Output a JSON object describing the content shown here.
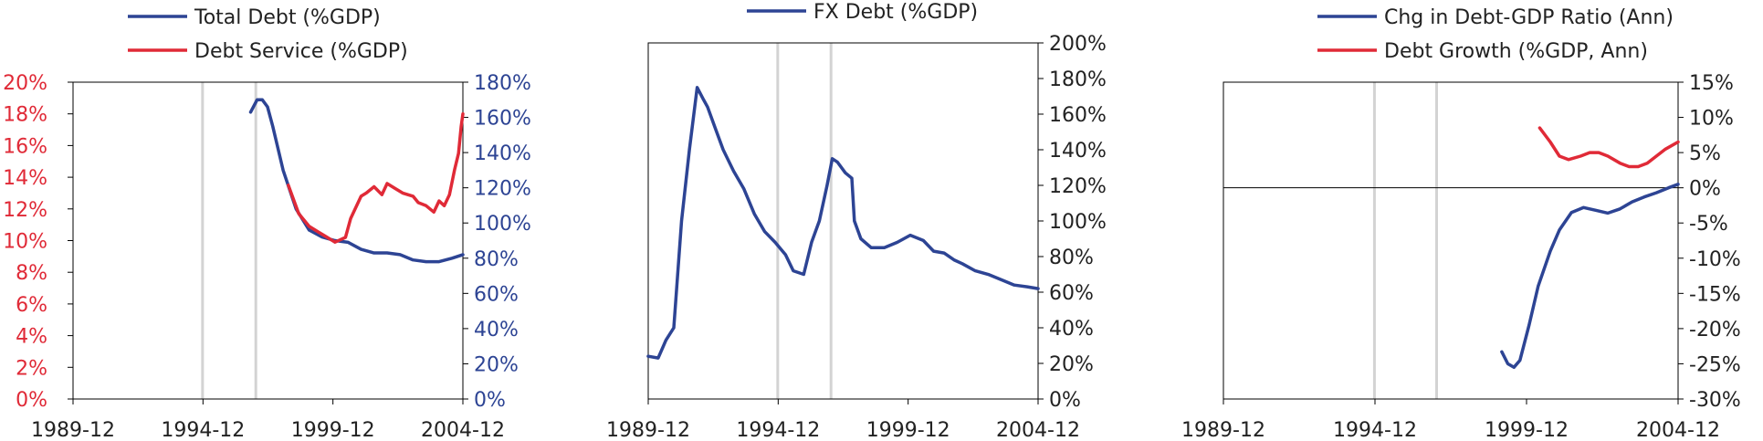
{
  "colors": {
    "blue": "#2d4494",
    "red": "#e02a37",
    "axis": "#000000",
    "recession": "#d3d3d3",
    "left_axis_red": "#e02a37",
    "right_axis_blue": "#2d4494"
  },
  "chart_data": [
    {
      "type": "line",
      "legend": [
        "Total Debt (%GDP)",
        "Debt Service (%GDP)"
      ],
      "x_tick_labels": [
        "1989-12",
        "1994-12",
        "1999-12",
        "2004-12"
      ],
      "xlim": [
        1989.917,
        2004.917
      ],
      "left_axis": {
        "ylim": [
          0,
          20
        ],
        "tick_labels": [
          "0%",
          "2%",
          "4%",
          "6%",
          "8%",
          "10%",
          "12%",
          "14%",
          "16%",
          "18%",
          "20%"
        ]
      },
      "right_axis": {
        "ylim": [
          0,
          180
        ],
        "tick_labels": [
          "0%",
          "20%",
          "40%",
          "60%",
          "80%",
          "100%",
          "120%",
          "140%",
          "160%",
          "180%"
        ]
      },
      "recession_lines": [
        1994.9,
        1996.95
      ],
      "series": [
        {
          "name": "Total Debt (%GDP)",
          "axis": "right",
          "color": "blue",
          "x": [
            1996.75,
            1997.0,
            1997.2,
            1997.4,
            1997.6,
            1998.0,
            1998.5,
            1999.0,
            1999.5,
            2000.0,
            2000.5,
            2001.0,
            2001.5,
            2002.0,
            2002.5,
            2003.0,
            2003.5,
            2004.0,
            2004.5,
            2004.917
          ],
          "y": [
            163,
            170,
            170,
            166,
            155,
            130,
            108,
            96,
            92,
            90,
            89,
            85,
            83,
            83,
            82,
            79,
            78,
            78,
            80,
            82
          ]
        },
        {
          "name": "Debt Service (%GDP)",
          "axis": "left",
          "color": "red",
          "x": [
            1998.2,
            1998.6,
            1999.0,
            1999.3,
            1999.6,
            2000.0,
            2000.4,
            2000.6,
            2001.0,
            2001.2,
            2001.5,
            2001.8,
            2002.0,
            2002.3,
            2002.6,
            2003.0,
            2003.2,
            2003.5,
            2003.8,
            2004.0,
            2004.2,
            2004.4,
            2004.6,
            2004.75,
            2004.85,
            2004.917
          ],
          "y": [
            13.5,
            11.7,
            10.9,
            10.6,
            10.3,
            9.9,
            10.2,
            11.4,
            12.8,
            13.0,
            13.4,
            12.9,
            13.6,
            13.3,
            13.0,
            12.8,
            12.4,
            12.2,
            11.8,
            12.5,
            12.2,
            12.9,
            14.5,
            15.5,
            17.2,
            18.0
          ]
        }
      ]
    },
    {
      "type": "line",
      "legend": [
        "FX Debt (%GDP)"
      ],
      "x_tick_labels": [
        "1989-12",
        "1994-12",
        "1999-12",
        "2004-12"
      ],
      "xlim": [
        1989.917,
        2004.917
      ],
      "right_axis": {
        "ylim": [
          0,
          200
        ],
        "tick_labels": [
          "0%",
          "20%",
          "40%",
          "60%",
          "80%",
          "100%",
          "120%",
          "140%",
          "160%",
          "180%",
          "200%"
        ]
      },
      "recession_lines": [
        1994.9,
        1996.95
      ],
      "series": [
        {
          "name": "FX Debt (%GDP)",
          "axis": "right",
          "color": "blue",
          "x": [
            1989.917,
            1990.3,
            1990.6,
            1990.9,
            1991.2,
            1991.5,
            1991.8,
            1992.05,
            1992.2,
            1992.5,
            1992.8,
            1993.2,
            1993.6,
            1994.0,
            1994.4,
            1994.8,
            1995.2,
            1995.5,
            1995.9,
            1996.2,
            1996.5,
            1996.8,
            1997.0,
            1997.2,
            1997.5,
            1997.75,
            1997.85,
            1998.1,
            1998.5,
            1999.0,
            1999.5,
            2000.0,
            2000.5,
            2000.9,
            2001.3,
            2001.7,
            2002.0,
            2002.5,
            2003.0,
            2003.5,
            2004.0,
            2004.5,
            2004.917
          ],
          "y": [
            24,
            23,
            33,
            40,
            100,
            140,
            175,
            168,
            164,
            152,
            140,
            128,
            118,
            104,
            94,
            88,
            81,
            72,
            70,
            88,
            100,
            120,
            135,
            133,
            127,
            124,
            100,
            90,
            85,
            85,
            88,
            92,
            89,
            83,
            82,
            78,
            76,
            72,
            70,
            67,
            64,
            63,
            62
          ]
        }
      ]
    },
    {
      "type": "line",
      "legend": [
        "Chg in Debt-GDP Ratio (Ann)",
        "Debt Growth (%GDP, Ann)"
      ],
      "x_tick_labels": [
        "1989-12",
        "1994-12",
        "1999-12",
        "2004-12"
      ],
      "xlim": [
        1989.917,
        2004.917
      ],
      "right_axis": {
        "ylim": [
          -30,
          15
        ],
        "tick_labels": [
          "-30%",
          "-25%",
          "-20%",
          "-15%",
          "-10%",
          "-5%",
          "0%",
          "5%",
          "10%",
          "15%"
        ]
      },
      "recession_lines": [
        1994.9,
        1996.95
      ],
      "series": [
        {
          "name": "Chg in Debt-GDP Ratio (Ann)",
          "axis": "right",
          "color": "blue",
          "x": [
            1999.1,
            1999.3,
            1999.5,
            1999.7,
            2000.0,
            2000.3,
            2000.7,
            2001.0,
            2001.4,
            2001.8,
            2002.2,
            2002.6,
            2003.0,
            2003.4,
            2003.8,
            2004.2,
            2004.6,
            2004.917
          ],
          "y": [
            -23.3,
            -25.0,
            -25.5,
            -24.5,
            -19.5,
            -14.0,
            -9.0,
            -6.0,
            -3.5,
            -2.8,
            -3.2,
            -3.6,
            -3.0,
            -2.0,
            -1.3,
            -0.7,
            0.0,
            0.5
          ]
        },
        {
          "name": "Debt Growth (%GDP, Ann)",
          "axis": "right",
          "color": "red",
          "x": [
            2000.35,
            2000.7,
            2001.0,
            2001.3,
            2001.7,
            2002.0,
            2002.3,
            2002.6,
            2003.0,
            2003.3,
            2003.6,
            2003.9,
            2004.2,
            2004.5,
            2004.917
          ],
          "y": [
            8.5,
            6.5,
            4.5,
            4.0,
            4.5,
            5.0,
            5.0,
            4.5,
            3.5,
            3.0,
            3.0,
            3.5,
            4.5,
            5.5,
            6.5
          ]
        }
      ]
    }
  ]
}
